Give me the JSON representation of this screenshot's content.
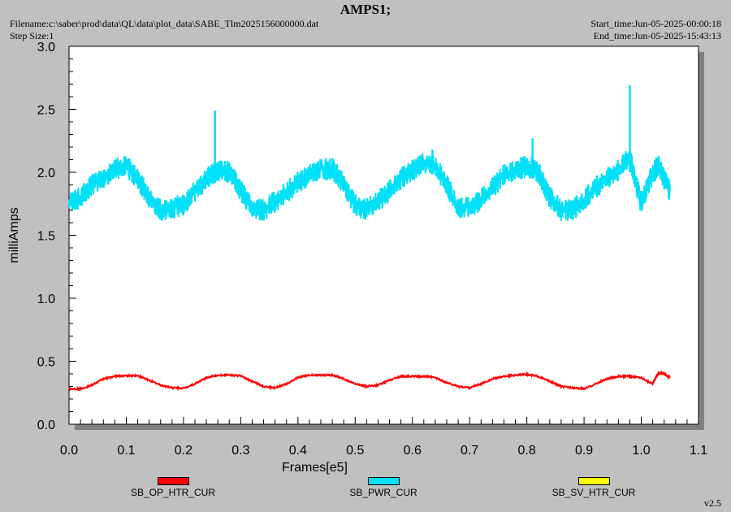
{
  "header": {
    "title": "AMPS1;",
    "filename": "Filename:c:\\saber\\prod\\data\\QL\\data\\plot_data\\SABE_Tlm2025156000000.dat",
    "step_size": "Step Size:1",
    "start_time": "Start_time:Jun-05-2025-00:00:18",
    "end_time": "End_time:Jun-05-2025-15:43:13"
  },
  "version": "v2.5",
  "colors": {
    "background": "#c0c0c0",
    "plot_bg": "#ffffff",
    "shadow": "#808080"
  },
  "chart_data": {
    "type": "line",
    "title": "AMPS1;",
    "xlabel": "Frames[e5]",
    "ylabel": "milliAmps",
    "xlim": [
      0.0,
      1.1
    ],
    "ylim": [
      0.0,
      3.0
    ],
    "x_ticks": [
      "0.0",
      "0.1",
      "0.2",
      "0.3",
      "0.4",
      "0.5",
      "0.6",
      "0.7",
      "0.8",
      "0.9",
      "1.0",
      "1.1"
    ],
    "y_ticks": [
      "0.0",
      "0.5",
      "1.0",
      "1.5",
      "2.0",
      "2.5",
      "3.0"
    ],
    "grid": false,
    "legend_position": "bottom",
    "series": [
      {
        "name": "SB_OP_HTR_CUR",
        "color": "#ff0000",
        "x": [
          0.0,
          0.02,
          0.04,
          0.06,
          0.08,
          0.1,
          0.12,
          0.14,
          0.16,
          0.18,
          0.2,
          0.22,
          0.24,
          0.26,
          0.28,
          0.3,
          0.32,
          0.34,
          0.36,
          0.38,
          0.4,
          0.42,
          0.44,
          0.46,
          0.48,
          0.5,
          0.52,
          0.54,
          0.56,
          0.58,
          0.6,
          0.62,
          0.64,
          0.66,
          0.68,
          0.7,
          0.72,
          0.74,
          0.76,
          0.78,
          0.8,
          0.82,
          0.84,
          0.86,
          0.88,
          0.9,
          0.92,
          0.94,
          0.96,
          0.98,
          1.0,
          1.02,
          1.03,
          1.04,
          1.05
        ],
        "values": [
          0.28,
          0.28,
          0.31,
          0.36,
          0.38,
          0.385,
          0.385,
          0.35,
          0.31,
          0.29,
          0.285,
          0.32,
          0.37,
          0.39,
          0.39,
          0.385,
          0.34,
          0.3,
          0.29,
          0.32,
          0.37,
          0.39,
          0.39,
          0.39,
          0.36,
          0.32,
          0.3,
          0.31,
          0.35,
          0.38,
          0.38,
          0.38,
          0.37,
          0.33,
          0.3,
          0.29,
          0.32,
          0.36,
          0.38,
          0.39,
          0.395,
          0.38,
          0.34,
          0.3,
          0.29,
          0.28,
          0.32,
          0.36,
          0.38,
          0.38,
          0.37,
          0.32,
          0.41,
          0.4,
          0.37
        ]
      },
      {
        "name": "SB_PWR_CUR",
        "color": "#00e0f8",
        "x": [
          0.0,
          0.02,
          0.04,
          0.06,
          0.08,
          0.1,
          0.12,
          0.14,
          0.16,
          0.18,
          0.2,
          0.22,
          0.24,
          0.26,
          0.28,
          0.3,
          0.32,
          0.34,
          0.36,
          0.38,
          0.4,
          0.42,
          0.44,
          0.46,
          0.48,
          0.5,
          0.52,
          0.54,
          0.56,
          0.58,
          0.6,
          0.62,
          0.64,
          0.66,
          0.68,
          0.7,
          0.72,
          0.74,
          0.76,
          0.78,
          0.8,
          0.82,
          0.84,
          0.86,
          0.88,
          0.9,
          0.92,
          0.94,
          0.96,
          0.98,
          1.0,
          1.02,
          1.03,
          1.04,
          1.05
        ],
        "values": [
          1.76,
          1.8,
          1.9,
          1.96,
          2.02,
          2.05,
          1.95,
          1.8,
          1.7,
          1.72,
          1.74,
          1.85,
          1.95,
          2.02,
          2.0,
          1.85,
          1.72,
          1.7,
          1.77,
          1.84,
          1.92,
          1.98,
          2.02,
          2.03,
          1.9,
          1.74,
          1.71,
          1.77,
          1.85,
          1.95,
          2.02,
          2.08,
          2.05,
          1.9,
          1.72,
          1.72,
          1.78,
          1.88,
          1.98,
          2.02,
          2.05,
          2.0,
          1.8,
          1.7,
          1.7,
          1.78,
          1.88,
          1.95,
          2.02,
          2.12,
          1.75,
          2.0,
          2.05,
          1.95,
          1.86
        ]
      },
      {
        "name": "SB_SV_HTR_CUR",
        "color": "#ffff00",
        "x": [],
        "values": []
      }
    ],
    "annotations": [
      {
        "series": "SB_PWR_CUR",
        "x": 0.255,
        "y": 2.49
      },
      {
        "series": "SB_PWR_CUR",
        "x": 0.98,
        "y": 2.69
      },
      {
        "series": "SB_PWR_CUR",
        "x": 0.81,
        "y": 2.27
      },
      {
        "series": "SB_PWR_CUR",
        "x": 0.635,
        "y": 2.18
      }
    ]
  }
}
